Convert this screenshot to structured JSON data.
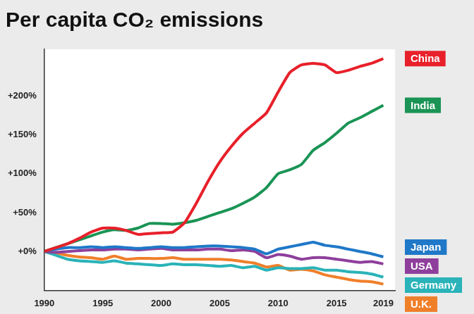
{
  "chart_data": {
    "type": "line",
    "title": "Per capita CO₂ emissions",
    "x": [
      1990,
      1991,
      1992,
      1993,
      1994,
      1995,
      1996,
      1997,
      1998,
      1999,
      2000,
      2001,
      2002,
      2003,
      2004,
      2005,
      2006,
      2007,
      2008,
      2009,
      2010,
      2011,
      2012,
      2013,
      2014,
      2015,
      2016,
      2017,
      2018,
      2019
    ],
    "series": [
      {
        "name": "China",
        "color": "#e8202a",
        "values": [
          0,
          5,
          10,
          17,
          25,
          30,
          30,
          27,
          22,
          23,
          24,
          25,
          37,
          62,
          90,
          115,
          135,
          152,
          165,
          178,
          205,
          230,
          240,
          242,
          240,
          230,
          233,
          238,
          242,
          248
        ]
      },
      {
        "name": "India",
        "color": "#1a9455",
        "values": [
          0,
          5,
          10,
          15,
          20,
          25,
          28,
          27,
          30,
          36,
          36,
          35,
          37,
          40,
          45,
          50,
          55,
          62,
          70,
          82,
          100,
          105,
          112,
          130,
          140,
          152,
          165,
          172,
          180,
          188
        ]
      },
      {
        "name": "Japan",
        "color": "#1f78c8",
        "values": [
          0,
          3,
          5,
          5,
          6,
          5,
          6,
          5,
          4,
          5,
          6,
          5,
          5,
          6,
          7,
          7,
          6,
          5,
          3,
          -3,
          3,
          6,
          9,
          12,
          8,
          6,
          3,
          0,
          -3,
          -7
        ]
      },
      {
        "name": "USA",
        "color": "#8e3f9c",
        "values": [
          0,
          -1,
          0,
          1,
          2,
          2,
          3,
          3,
          2,
          3,
          4,
          2,
          2,
          2,
          3,
          3,
          1,
          2,
          0,
          -8,
          -4,
          -6,
          -10,
          -8,
          -8,
          -10,
          -12,
          -14,
          -13,
          -16
        ]
      },
      {
        "name": "Germany",
        "color": "#2ab3b8",
        "values": [
          0,
          -5,
          -10,
          -12,
          -13,
          -14,
          -12,
          -15,
          -16,
          -17,
          -18,
          -16,
          -17,
          -17,
          -18,
          -19,
          -18,
          -21,
          -19,
          -24,
          -21,
          -22,
          -22,
          -21,
          -24,
          -24,
          -26,
          -27,
          -29,
          -33
        ]
      },
      {
        "name": "U.K.",
        "color": "#f07f2a",
        "values": [
          0,
          -2,
          -5,
          -7,
          -8,
          -10,
          -6,
          -10,
          -9,
          -9,
          -9,
          -8,
          -10,
          -10,
          -10,
          -10,
          -11,
          -13,
          -15,
          -20,
          -18,
          -24,
          -23,
          -25,
          -30,
          -33,
          -36,
          -38,
          -39,
          -42
        ]
      }
    ],
    "xlim": [
      1990,
      2020
    ],
    "xticks": [
      1990,
      1995,
      2000,
      2005,
      2010,
      2015,
      2019
    ],
    "ylim": [
      -50,
      260
    ],
    "yticks": [
      {
        "value": 0,
        "label": "+0%"
      },
      {
        "value": 50,
        "label": "+50%"
      },
      {
        "value": 100,
        "label": "+100%"
      },
      {
        "value": 150,
        "label": "+150%"
      },
      {
        "value": 200,
        "label": "+200%"
      }
    ],
    "grid": false,
    "legend": "right"
  }
}
